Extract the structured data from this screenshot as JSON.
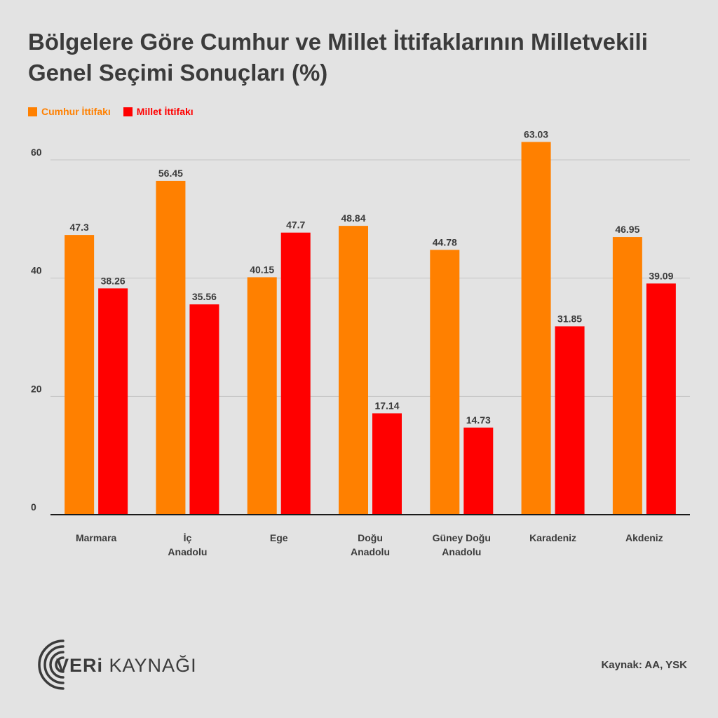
{
  "chart_data": {
    "type": "bar",
    "title": "Bölgelere Göre Cumhur ve Millet İttifaklarının Milletvekili Genel Seçimi Sonuçları (%)",
    "categories": [
      [
        "Marmara"
      ],
      [
        "İç",
        "Anadolu"
      ],
      [
        "Ege"
      ],
      [
        "Doğu",
        "Anadolu"
      ],
      [
        "Güney Doğu",
        "Anadolu"
      ],
      [
        "Karadeniz"
      ],
      [
        "Akdeniz"
      ]
    ],
    "series": [
      {
        "name": "Cumhur İttifakı",
        "color": "#ff8000",
        "values": [
          47.3,
          56.45,
          40.15,
          48.84,
          44.78,
          63.03,
          46.95
        ]
      },
      {
        "name": "Millet İttifakı",
        "color": "#ff0000",
        "values": [
          38.26,
          35.56,
          47.7,
          17.14,
          14.73,
          31.85,
          39.09
        ]
      }
    ],
    "yticks": [
      0,
      20,
      40,
      60
    ],
    "ylim": [
      0,
      60
    ],
    "grid": true,
    "legend": "top-left"
  },
  "logo": {
    "text_bold": "VERi",
    "text_regular": " KAYNAĞI"
  },
  "source": "Kaynak: AA, YSK"
}
